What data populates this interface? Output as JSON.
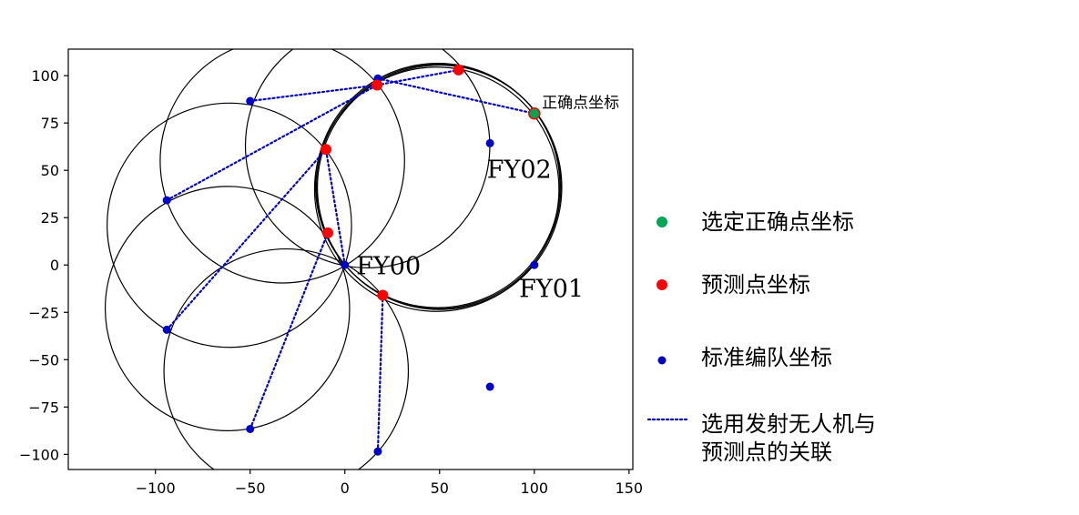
{
  "chart_data": {
    "type": "scatter",
    "xlim": [
      -146,
      152
    ],
    "ylim": [
      -108,
      114
    ],
    "xticks": [
      -100,
      -50,
      0,
      50,
      100,
      150
    ],
    "yticks": [
      -100,
      -75,
      -50,
      -25,
      0,
      25,
      50,
      75,
      100
    ],
    "xtick_labels": [
      "−100",
      "−50",
      "0",
      "50",
      "100",
      "150"
    ],
    "ytick_labels": [
      "−100",
      "−75",
      "−50",
      "−25",
      "0",
      "25",
      "50",
      "75",
      "100"
    ],
    "grid": false,
    "colors": {
      "correct": "#00a651",
      "predicted": "#ff0000",
      "standard": "#0000cc",
      "link": "#0000cc",
      "circle": "#000000"
    },
    "standard_formation": [
      {
        "x": 0,
        "y": 0
      },
      {
        "x": 100,
        "y": 0
      },
      {
        "x": 76.6,
        "y": 64.3
      },
      {
        "x": 17.4,
        "y": 98.5
      },
      {
        "x": -50,
        "y": 86.6
      },
      {
        "x": -94,
        "y": 34.2
      },
      {
        "x": -94,
        "y": -34.2
      },
      {
        "x": -50,
        "y": -86.6
      },
      {
        "x": 17.4,
        "y": -98.5
      },
      {
        "x": 76.6,
        "y": -64.3
      }
    ],
    "predicted_points": [
      {
        "x": 60,
        "y": 103
      },
      {
        "x": 17,
        "y": 95
      },
      {
        "x": -10,
        "y": 61
      },
      {
        "x": -9,
        "y": 17
      },
      {
        "x": 20,
        "y": -16
      }
    ],
    "correct_point": {
      "x": 100,
      "y": 80
    },
    "links": [
      [
        [
          -50,
          86.6
        ],
        [
          17,
          95
        ]
      ],
      [
        [
          17.4,
          98.5
        ],
        [
          100,
          80
        ]
      ],
      [
        [
          17,
          95
        ],
        [
          60,
          103
        ]
      ],
      [
        [
          -94,
          34.2
        ],
        [
          17,
          95
        ]
      ],
      [
        [
          0,
          0
        ],
        [
          -10,
          61
        ]
      ],
      [
        [
          -94,
          -34.2
        ],
        [
          -10,
          61
        ]
      ],
      [
        [
          -50,
          -86.6
        ],
        [
          -9,
          17
        ]
      ],
      [
        [
          17.4,
          -98.5
        ],
        [
          20,
          -16
        ]
      ]
    ],
    "circles": [
      {
        "cx": -61,
        "cy": 21,
        "r": 64.5
      },
      {
        "cx": -62,
        "cy": -23,
        "r": 64.5
      },
      {
        "cx": -31,
        "cy": -56,
        "r": 64.5
      },
      {
        "cx": -33,
        "cy": 55,
        "r": 64.5
      },
      {
        "cx": 12,
        "cy": 63,
        "r": 64.5
      },
      {
        "cx": 50,
        "cy": 41,
        "r": 64.5
      },
      {
        "cx": 48.5,
        "cy": 40,
        "r": 64.5
      },
      {
        "cx": 49,
        "cy": 42,
        "r": 64.5
      },
      {
        "cx": 49.5,
        "cy": 41.5,
        "r": 64.5
      }
    ],
    "annotations": [
      {
        "text": "FY00",
        "x": 6,
        "y": -5,
        "size": "big"
      },
      {
        "text": "FY01",
        "x": 92,
        "y": -17,
        "size": "big"
      },
      {
        "text": "FY02",
        "x": 75,
        "y": 46,
        "size": "big"
      },
      {
        "text": "正确点坐标",
        "x": 104,
        "y": 83,
        "size": "small"
      }
    ],
    "legend": {
      "position": "right",
      "entries": [
        {
          "label": "选定正确点坐标",
          "marker": "big-dot",
          "color": "#00a651"
        },
        {
          "label": "预测点坐标",
          "marker": "big-dot",
          "color": "#ff0000"
        },
        {
          "label": "标准编队坐标",
          "marker": "small-dot",
          "color": "#0000cc"
        },
        {
          "label": "选用发射无人机与\n预测点的关联",
          "marker": "dotted-line",
          "color": "#0000cc"
        }
      ]
    }
  }
}
